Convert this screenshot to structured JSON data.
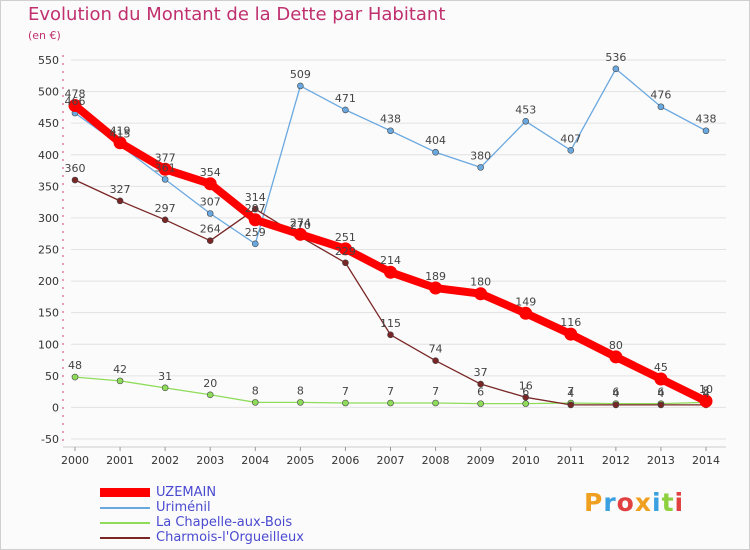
{
  "chart_data": {
    "type": "line",
    "title": "Evolution du Montant de la Dette par Habitant",
    "subtitle": "(en €)",
    "x": [
      "2000",
      "2001",
      "2002",
      "2003",
      "2004",
      "2005",
      "2006",
      "2007",
      "2008",
      "2009",
      "2010",
      "2011",
      "2012",
      "2013",
      "2014"
    ],
    "ylim": [
      -50,
      550
    ],
    "yticks": [
      -50,
      0,
      50,
      100,
      150,
      200,
      250,
      300,
      350,
      400,
      450,
      500,
      550
    ],
    "grid": "horizontal",
    "legend_position": "bottom-left",
    "series": [
      {
        "name": "UZEMAIN",
        "color": "#ff0000",
        "values": [
          478,
          419,
          377,
          354,
          297,
          274,
          251,
          214,
          189,
          180,
          149,
          116,
          80,
          45,
          10
        ]
      },
      {
        "name": "Uriménil",
        "color": "#6aa8e0",
        "values": [
          466,
          415,
          361,
          307,
          259,
          509,
          471,
          438,
          404,
          380,
          453,
          407,
          536,
          476,
          438
        ]
      },
      {
        "name": "La Chapelle-aux-Bois",
        "color": "#8edc5a",
        "values": [
          48,
          42,
          31,
          20,
          8,
          8,
          7,
          7,
          7,
          6,
          6,
          7,
          6,
          6,
          8
        ]
      },
      {
        "name": "Charmois-l'Orgueilleux",
        "color": "#7a2626",
        "values": [
          360,
          327,
          297,
          264,
          314,
          270,
          229,
          115,
          74,
          37,
          16,
          4,
          4,
          4,
          4
        ]
      }
    ]
  },
  "logo_text": "Proxiti"
}
